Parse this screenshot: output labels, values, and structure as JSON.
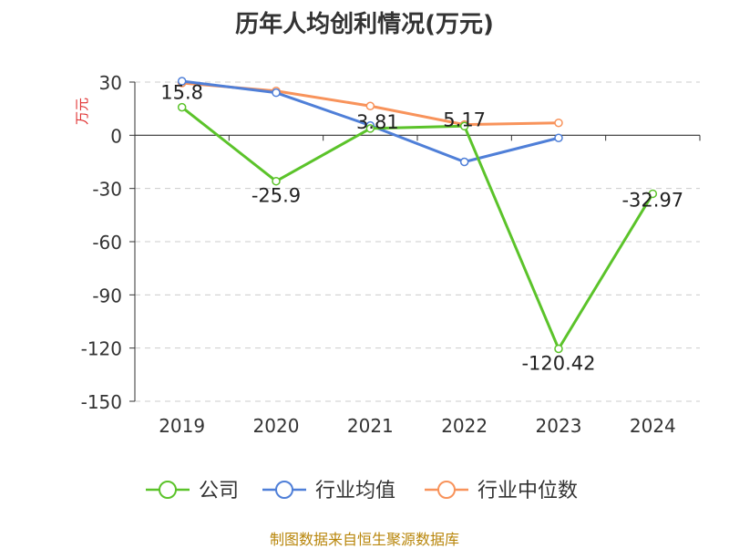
{
  "chart_data": {
    "type": "line",
    "title": "历年人均创利情况(万元)",
    "ylabel": "万元",
    "categories": [
      "2019",
      "2020",
      "2021",
      "2022",
      "2023",
      "2024"
    ],
    "ylim": [
      -150,
      30
    ],
    "yticks": [
      30,
      0,
      -30,
      -60,
      -90,
      -120,
      -150
    ],
    "grid": true,
    "legend_position": "bottom",
    "series": [
      {
        "name": "公司",
        "color": "#5bc32a",
        "values": [
          15.8,
          -25.9,
          3.81,
          5.17,
          -120.42,
          -32.97
        ],
        "labels": [
          "15.8",
          "-25.9",
          "3.81",
          "5.17",
          "-120.42",
          "-32.97"
        ]
      },
      {
        "name": "行业均值",
        "color": "#4f7fd8",
        "values": [
          30.5,
          24,
          5.5,
          -15,
          -1.5,
          null
        ]
      },
      {
        "name": "行业中位数",
        "color": "#f8935b",
        "values": [
          29.5,
          25,
          16.5,
          6,
          7,
          null
        ]
      }
    ]
  },
  "source": "制图数据来自恒生聚源数据库"
}
